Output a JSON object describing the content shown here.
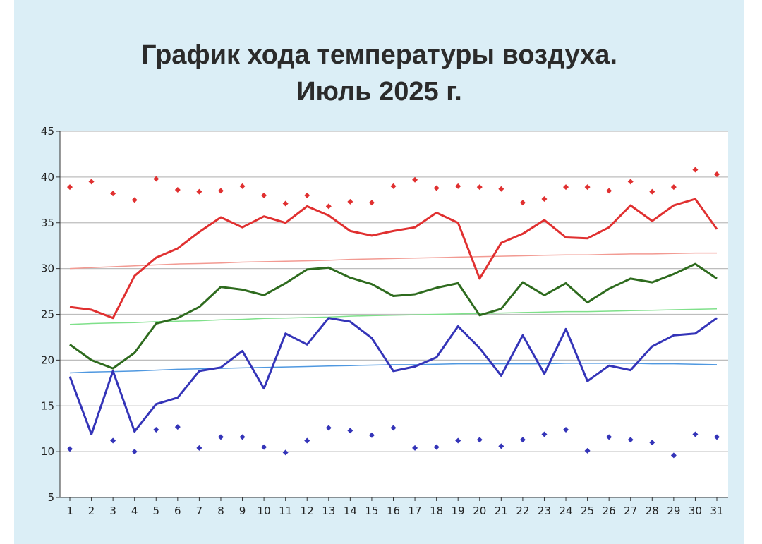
{
  "title": {
    "line1": "График хода температуры воздуха.",
    "line2": "Июль 2025 г."
  },
  "chart_data": {
    "type": "line",
    "x": [
      1,
      2,
      3,
      4,
      5,
      6,
      7,
      8,
      9,
      10,
      11,
      12,
      13,
      14,
      15,
      16,
      17,
      18,
      19,
      20,
      21,
      22,
      23,
      24,
      25,
      26,
      27,
      28,
      29,
      30,
      31
    ],
    "ylim": [
      5,
      45
    ],
    "yticks": [
      5,
      10,
      15,
      20,
      25,
      30,
      35,
      40,
      45
    ],
    "grid": true,
    "xlabel": "",
    "ylabel": "",
    "series": [
      {
        "kind": "line",
        "color": "#e03030",
        "values": [
          25.8,
          25.5,
          24.6,
          29.2,
          31.2,
          32.2,
          34.0,
          35.6,
          34.5,
          35.7,
          35.0,
          36.8,
          35.8,
          34.1,
          33.6,
          34.1,
          34.5,
          36.1,
          35.0,
          28.9,
          32.8,
          33.8,
          35.3,
          33.4,
          33.3,
          34.5,
          36.9,
          35.2,
          36.9,
          37.6,
          34.3
        ]
      },
      {
        "kind": "line",
        "color": "#2e6b1e",
        "values": [
          21.7,
          20.0,
          19.1,
          20.8,
          24.0,
          24.6,
          25.8,
          28.0,
          27.7,
          27.1,
          28.4,
          29.9,
          30.1,
          29.0,
          28.3,
          27.0,
          27.2,
          27.9,
          28.4,
          24.9,
          25.6,
          28.5,
          27.1,
          28.4,
          26.3,
          27.8,
          28.9,
          28.5,
          29.4,
          30.5,
          28.9
        ]
      },
      {
        "kind": "line",
        "color": "#3434b8",
        "values": [
          18.2,
          11.9,
          18.8,
          12.2,
          15.2,
          15.9,
          18.8,
          19.2,
          21.0,
          16.9,
          22.9,
          21.7,
          24.6,
          24.2,
          22.4,
          18.8,
          19.3,
          20.3,
          23.7,
          21.3,
          18.3,
          22.7,
          18.5,
          23.4,
          17.7,
          19.4,
          18.9,
          21.5,
          22.7,
          22.9,
          24.6
        ]
      },
      {
        "kind": "points",
        "color": "#e03030",
        "values": [
          38.9,
          39.5,
          38.2,
          37.5,
          39.8,
          38.6,
          38.4,
          38.5,
          39.0,
          38.0,
          37.1,
          38.0,
          36.8,
          37.3,
          37.2,
          39.0,
          39.7,
          38.8,
          39.0,
          38.9,
          38.7,
          37.2,
          37.6,
          38.9,
          38.9,
          38.5,
          39.5,
          38.4,
          38.9,
          40.8,
          40.3
        ]
      },
      {
        "kind": "points",
        "color": "#3434b8",
        "values": [
          10.3,
          null,
          11.2,
          10.0,
          12.4,
          12.7,
          10.4,
          11.6,
          11.6,
          10.5,
          9.9,
          11.2,
          12.6,
          12.3,
          11.8,
          12.6,
          10.4,
          10.5,
          11.2,
          11.3,
          10.6,
          11.3,
          11.9,
          12.4,
          10.1,
          11.6,
          11.3,
          11.0,
          9.6,
          11.9,
          11.6
        ]
      },
      {
        "kind": "line",
        "color": "#f29a92",
        "width": 1.5,
        "values": [
          30.0,
          30.1,
          30.2,
          30.3,
          30.4,
          30.5,
          30.55,
          30.6,
          30.7,
          30.75,
          30.8,
          30.85,
          30.9,
          31.0,
          31.05,
          31.1,
          31.15,
          31.2,
          31.25,
          31.3,
          31.35,
          31.4,
          31.45,
          31.5,
          31.5,
          31.55,
          31.6,
          31.6,
          31.65,
          31.7,
          31.7
        ]
      },
      {
        "kind": "line",
        "color": "#7fe08a",
        "width": 1.5,
        "values": [
          23.9,
          24.0,
          24.05,
          24.1,
          24.2,
          24.25,
          24.3,
          24.4,
          24.45,
          24.55,
          24.6,
          24.65,
          24.7,
          24.8,
          24.85,
          24.9,
          24.95,
          25.0,
          25.05,
          25.1,
          25.15,
          25.2,
          25.25,
          25.3,
          25.3,
          25.35,
          25.4,
          25.45,
          25.5,
          25.55,
          25.6
        ]
      },
      {
        "kind": "line",
        "color": "#4f98e0",
        "width": 1.5,
        "values": [
          18.6,
          18.7,
          18.75,
          18.8,
          18.9,
          19.0,
          19.05,
          19.1,
          19.15,
          19.2,
          19.25,
          19.3,
          19.35,
          19.4,
          19.45,
          19.5,
          19.5,
          19.55,
          19.6,
          19.6,
          19.6,
          19.6,
          19.6,
          19.65,
          19.65,
          19.65,
          19.65,
          19.6,
          19.6,
          19.55,
          19.5
        ]
      }
    ]
  }
}
